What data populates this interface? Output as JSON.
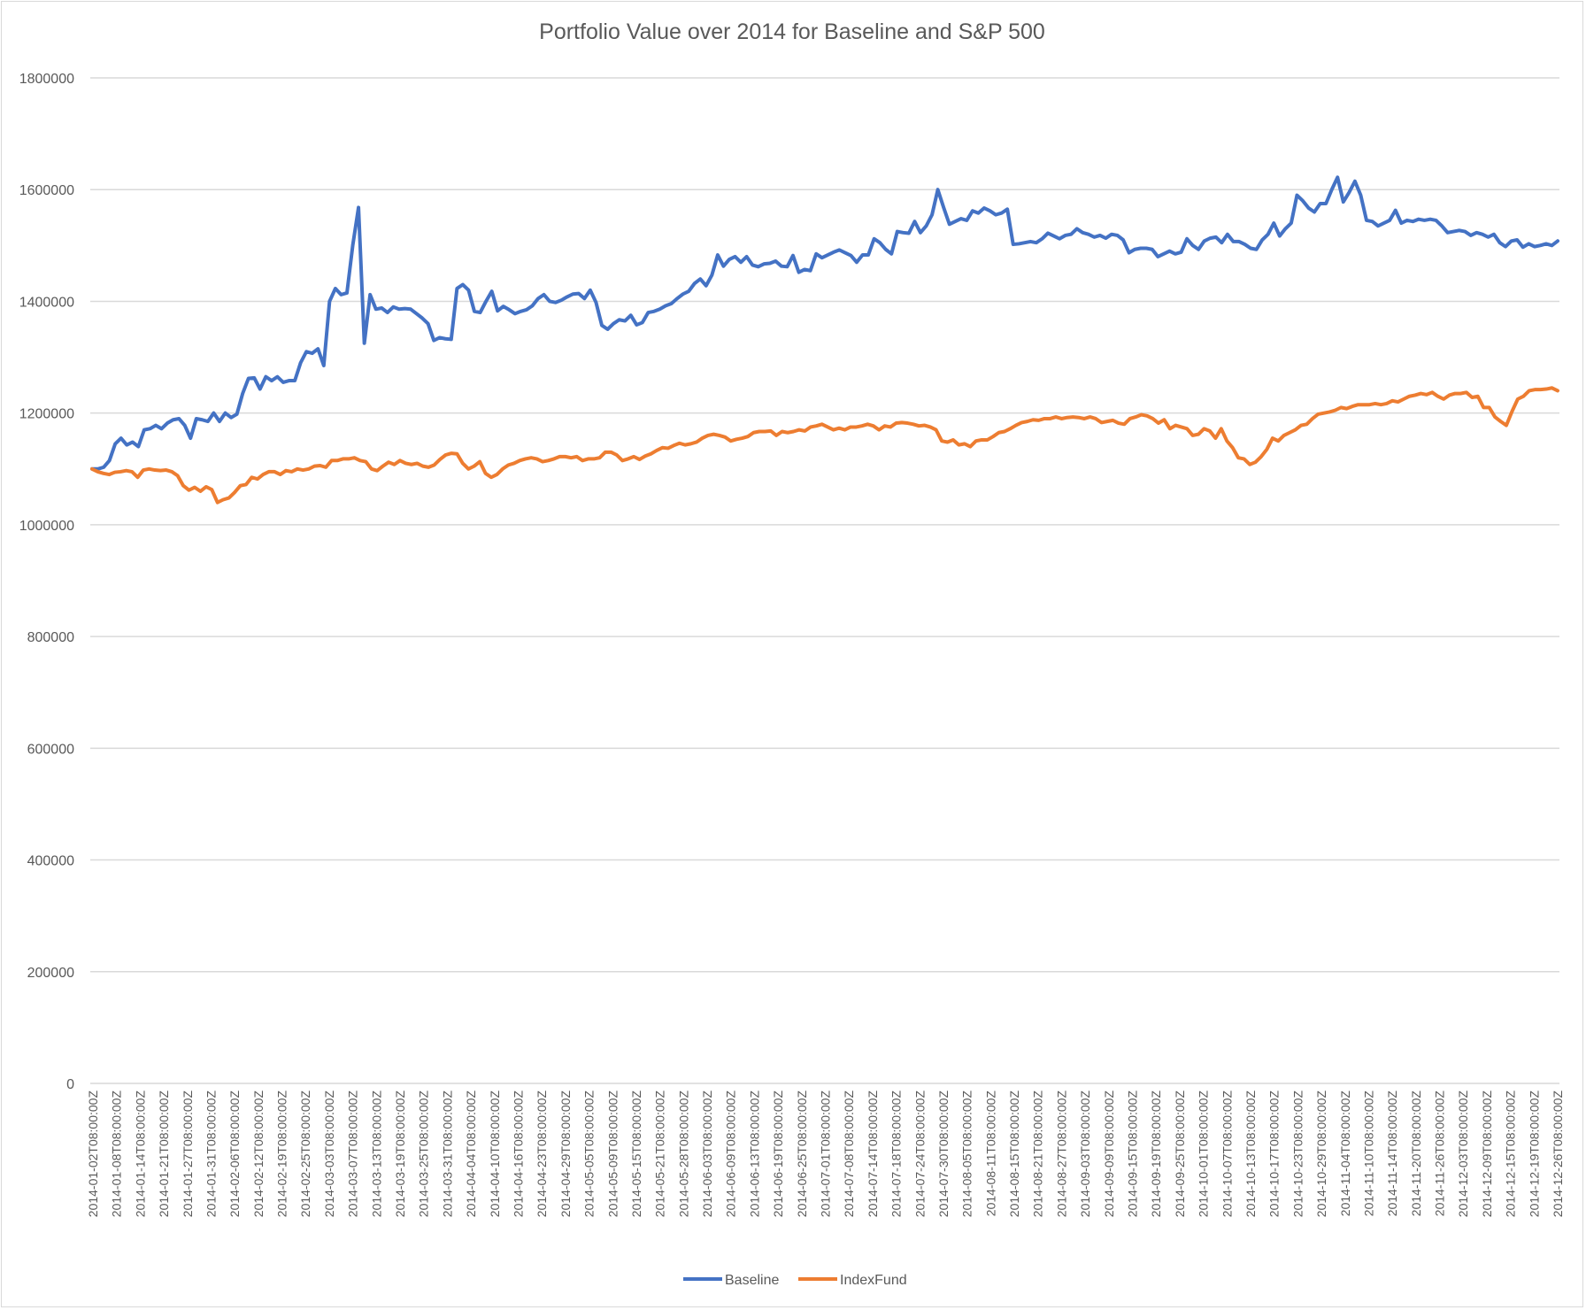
{
  "chart_data": {
    "type": "line",
    "title": "Portfolio Value over 2014 for Baseline and S&P 500",
    "xlabel": "",
    "ylabel": "",
    "ylim": [
      0,
      1800000
    ],
    "yticks": [
      "0",
      "200000",
      "400000",
      "600000",
      "800000",
      "1000000",
      "1200000",
      "1400000",
      "1600000",
      "1800000"
    ],
    "x_tick_labels": [
      "2014-01-02T08:00:00Z",
      "2014-01-08T08:00:00Z",
      "2014-01-14T08:00:00Z",
      "2014-01-21T08:00:00Z",
      "2014-01-27T08:00:00Z",
      "2014-01-31T08:00:00Z",
      "2014-02-06T08:00:00Z",
      "2014-02-12T08:00:00Z",
      "2014-02-19T08:00:00Z",
      "2014-02-25T08:00:00Z",
      "2014-03-03T08:00:00Z",
      "2014-03-07T08:00:00Z",
      "2014-03-13T08:00:00Z",
      "2014-03-19T08:00:00Z",
      "2014-03-25T08:00:00Z",
      "2014-03-31T08:00:00Z",
      "2014-04-04T08:00:00Z",
      "2014-04-10T08:00:00Z",
      "2014-04-16T08:00:00Z",
      "2014-04-23T08:00:00Z",
      "2014-04-29T08:00:00Z",
      "2014-05-05T08:00:00Z",
      "2014-05-09T08:00:00Z",
      "2014-05-15T08:00:00Z",
      "2014-05-21T08:00:00Z",
      "2014-05-28T08:00:00Z",
      "2014-06-03T08:00:00Z",
      "2014-06-09T08:00:00Z",
      "2014-06-13T08:00:00Z",
      "2014-06-19T08:00:00Z",
      "2014-06-25T08:00:00Z",
      "2014-07-01T08:00:00Z",
      "2014-07-08T08:00:00Z",
      "2014-07-14T08:00:00Z",
      "2014-07-18T08:00:00Z",
      "2014-07-24T08:00:00Z",
      "2014-07-30T08:00:00Z",
      "2014-08-05T08:00:00Z",
      "2014-08-11T08:00:00Z",
      "2014-08-15T08:00:00Z",
      "2014-08-21T08:00:00Z",
      "2014-08-27T08:00:00Z",
      "2014-09-03T08:00:00Z",
      "2014-09-09T08:00:00Z",
      "2014-09-15T08:00:00Z",
      "2014-09-19T08:00:00Z",
      "2014-09-25T08:00:00Z",
      "2014-10-01T08:00:00Z",
      "2014-10-07T08:00:00Z",
      "2014-10-13T08:00:00Z",
      "2014-10-17T08:00:00Z",
      "2014-10-23T08:00:00Z",
      "2014-10-29T08:00:00Z",
      "2014-11-04T08:00:00Z",
      "2014-11-10T08:00:00Z",
      "2014-11-14T08:00:00Z",
      "2014-11-20T08:00:00Z",
      "2014-11-26T08:00:00Z",
      "2014-12-03T08:00:00Z",
      "2014-12-09T08:00:00Z",
      "2014-12-15T08:00:00Z",
      "2014-12-19T08:00:00Z",
      "2014-12-26T08:00:00Z"
    ],
    "grid": true,
    "legend_position": "bottom",
    "series": [
      {
        "name": "Baseline",
        "color": "#4472c4",
        "values": [
          1100000,
          1100000,
          1103000,
          1115000,
          1145000,
          1155000,
          1143000,
          1148000,
          1140000,
          1170000,
          1172000,
          1178000,
          1172000,
          1182000,
          1188000,
          1190000,
          1178000,
          1155000,
          1190000,
          1188000,
          1185000,
          1200000,
          1185000,
          1200000,
          1192000,
          1198000,
          1235000,
          1262000,
          1263000,
          1243000,
          1265000,
          1258000,
          1265000,
          1255000,
          1258000,
          1258000,
          1290000,
          1310000,
          1307000,
          1315000,
          1285000,
          1400000,
          1423000,
          1412000,
          1415000,
          1500000,
          1568000,
          1325000,
          1412000,
          1386000,
          1388000,
          1380000,
          1390000,
          1386000,
          1387000,
          1386000,
          1378000,
          1370000,
          1360000,
          1330000,
          1335000,
          1333000,
          1332000,
          1423000,
          1430000,
          1420000,
          1382000,
          1380000,
          1400000,
          1418000,
          1383000,
          1391000,
          1385000,
          1378000,
          1382000,
          1385000,
          1392000,
          1405000,
          1412000,
          1400000,
          1398000,
          1402000,
          1408000,
          1413000,
          1414000,
          1405000,
          1420000,
          1398000,
          1357000,
          1350000,
          1360000,
          1367000,
          1365000,
          1375000,
          1358000,
          1362000,
          1380000,
          1382000,
          1386000,
          1392000,
          1396000,
          1405000,
          1413000,
          1418000,
          1432000,
          1440000,
          1428000,
          1447000,
          1483000,
          1463000,
          1475000,
          1480000,
          1470000,
          1480000,
          1465000,
          1462000,
          1467000,
          1468000,
          1472000,
          1463000,
          1462000,
          1482000,
          1452000,
          1457000,
          1455000,
          1485000,
          1478000,
          1483000,
          1488000,
          1492000,
          1487000,
          1482000,
          1470000,
          1483000,
          1483000,
          1512000,
          1505000,
          1493000,
          1485000,
          1525000,
          1523000,
          1522000,
          1543000,
          1523000,
          1535000,
          1555000,
          1600000,
          1568000,
          1538000,
          1543000,
          1548000,
          1545000,
          1562000,
          1558000,
          1567000,
          1562000,
          1555000,
          1558000,
          1565000,
          1502000,
          1503000,
          1505000,
          1507000,
          1505000,
          1512000,
          1522000,
          1517000,
          1512000,
          1518000,
          1520000,
          1530000,
          1523000,
          1520000,
          1515000,
          1518000,
          1513000,
          1520000,
          1518000,
          1510000,
          1487000,
          1493000,
          1495000,
          1495000,
          1493000,
          1480000,
          1485000,
          1490000,
          1485000,
          1488000,
          1512000,
          1500000,
          1493000,
          1508000,
          1513000,
          1515000,
          1505000,
          1520000,
          1507000,
          1507000,
          1502000,
          1495000,
          1493000,
          1510000,
          1520000,
          1540000,
          1517000,
          1530000,
          1540000,
          1590000,
          1580000,
          1567000,
          1560000,
          1575000,
          1575000,
          1600000,
          1622000,
          1578000,
          1595000,
          1615000,
          1590000,
          1545000,
          1543000,
          1535000,
          1540000,
          1545000,
          1563000,
          1540000,
          1545000,
          1543000,
          1547000,
          1545000,
          1547000,
          1545000,
          1535000,
          1523000,
          1525000,
          1527000,
          1525000,
          1518000,
          1523000,
          1520000,
          1515000,
          1520000,
          1505000,
          1498000,
          1508000,
          1510000,
          1497000,
          1503000,
          1498000,
          1500000,
          1503000,
          1500000,
          1508000
        ]
      },
      {
        "name": "IndexFund",
        "color": "#ed7d31",
        "values": [
          1100000,
          1095000,
          1092000,
          1090000,
          1094000,
          1095000,
          1097000,
          1095000,
          1085000,
          1098000,
          1100000,
          1098000,
          1097000,
          1098000,
          1095000,
          1088000,
          1070000,
          1062000,
          1067000,
          1060000,
          1068000,
          1063000,
          1040000,
          1045000,
          1048000,
          1058000,
          1070000,
          1072000,
          1085000,
          1082000,
          1090000,
          1095000,
          1095000,
          1090000,
          1097000,
          1095000,
          1100000,
          1098000,
          1100000,
          1105000,
          1106000,
          1103000,
          1115000,
          1115000,
          1118000,
          1118000,
          1120000,
          1115000,
          1113000,
          1100000,
          1097000,
          1105000,
          1112000,
          1108000,
          1115000,
          1110000,
          1108000,
          1110000,
          1105000,
          1103000,
          1107000,
          1117000,
          1125000,
          1128000,
          1127000,
          1110000,
          1100000,
          1105000,
          1113000,
          1092000,
          1085000,
          1090000,
          1100000,
          1107000,
          1110000,
          1115000,
          1118000,
          1120000,
          1118000,
          1113000,
          1115000,
          1118000,
          1122000,
          1122000,
          1120000,
          1122000,
          1115000,
          1118000,
          1118000,
          1120000,
          1130000,
          1130000,
          1125000,
          1115000,
          1118000,
          1122000,
          1117000,
          1123000,
          1127000,
          1133000,
          1138000,
          1137000,
          1142000,
          1146000,
          1143000,
          1145000,
          1148000,
          1155000,
          1160000,
          1162000,
          1160000,
          1157000,
          1150000,
          1153000,
          1155000,
          1158000,
          1165000,
          1167000,
          1167000,
          1168000,
          1160000,
          1167000,
          1165000,
          1167000,
          1170000,
          1168000,
          1175000,
          1177000,
          1180000,
          1175000,
          1170000,
          1173000,
          1170000,
          1175000,
          1175000,
          1177000,
          1180000,
          1177000,
          1170000,
          1177000,
          1175000,
          1182000,
          1183000,
          1182000,
          1180000,
          1177000,
          1178000,
          1175000,
          1170000,
          1150000,
          1148000,
          1152000,
          1143000,
          1145000,
          1140000,
          1150000,
          1152000,
          1152000,
          1158000,
          1165000,
          1167000,
          1172000,
          1178000,
          1183000,
          1185000,
          1188000,
          1187000,
          1190000,
          1190000,
          1193000,
          1190000,
          1192000,
          1193000,
          1192000,
          1190000,
          1193000,
          1190000,
          1183000,
          1185000,
          1187000,
          1182000,
          1180000,
          1190000,
          1193000,
          1197000,
          1195000,
          1190000,
          1182000,
          1188000,
          1172000,
          1178000,
          1175000,
          1172000,
          1160000,
          1162000,
          1172000,
          1168000,
          1155000,
          1172000,
          1150000,
          1138000,
          1120000,
          1118000,
          1108000,
          1112000,
          1122000,
          1135000,
          1155000,
          1150000,
          1160000,
          1165000,
          1170000,
          1178000,
          1180000,
          1190000,
          1198000,
          1200000,
          1202000,
          1205000,
          1210000,
          1208000,
          1212000,
          1215000,
          1215000,
          1215000,
          1217000,
          1215000,
          1217000,
          1222000,
          1220000,
          1225000,
          1230000,
          1232000,
          1235000,
          1233000,
          1237000,
          1230000,
          1225000,
          1232000,
          1235000,
          1235000,
          1237000,
          1228000,
          1230000,
          1210000,
          1210000,
          1193000,
          1185000,
          1178000,
          1203000,
          1225000,
          1230000,
          1240000,
          1242000,
          1242000,
          1243000,
          1245000,
          1240000
        ]
      }
    ]
  }
}
